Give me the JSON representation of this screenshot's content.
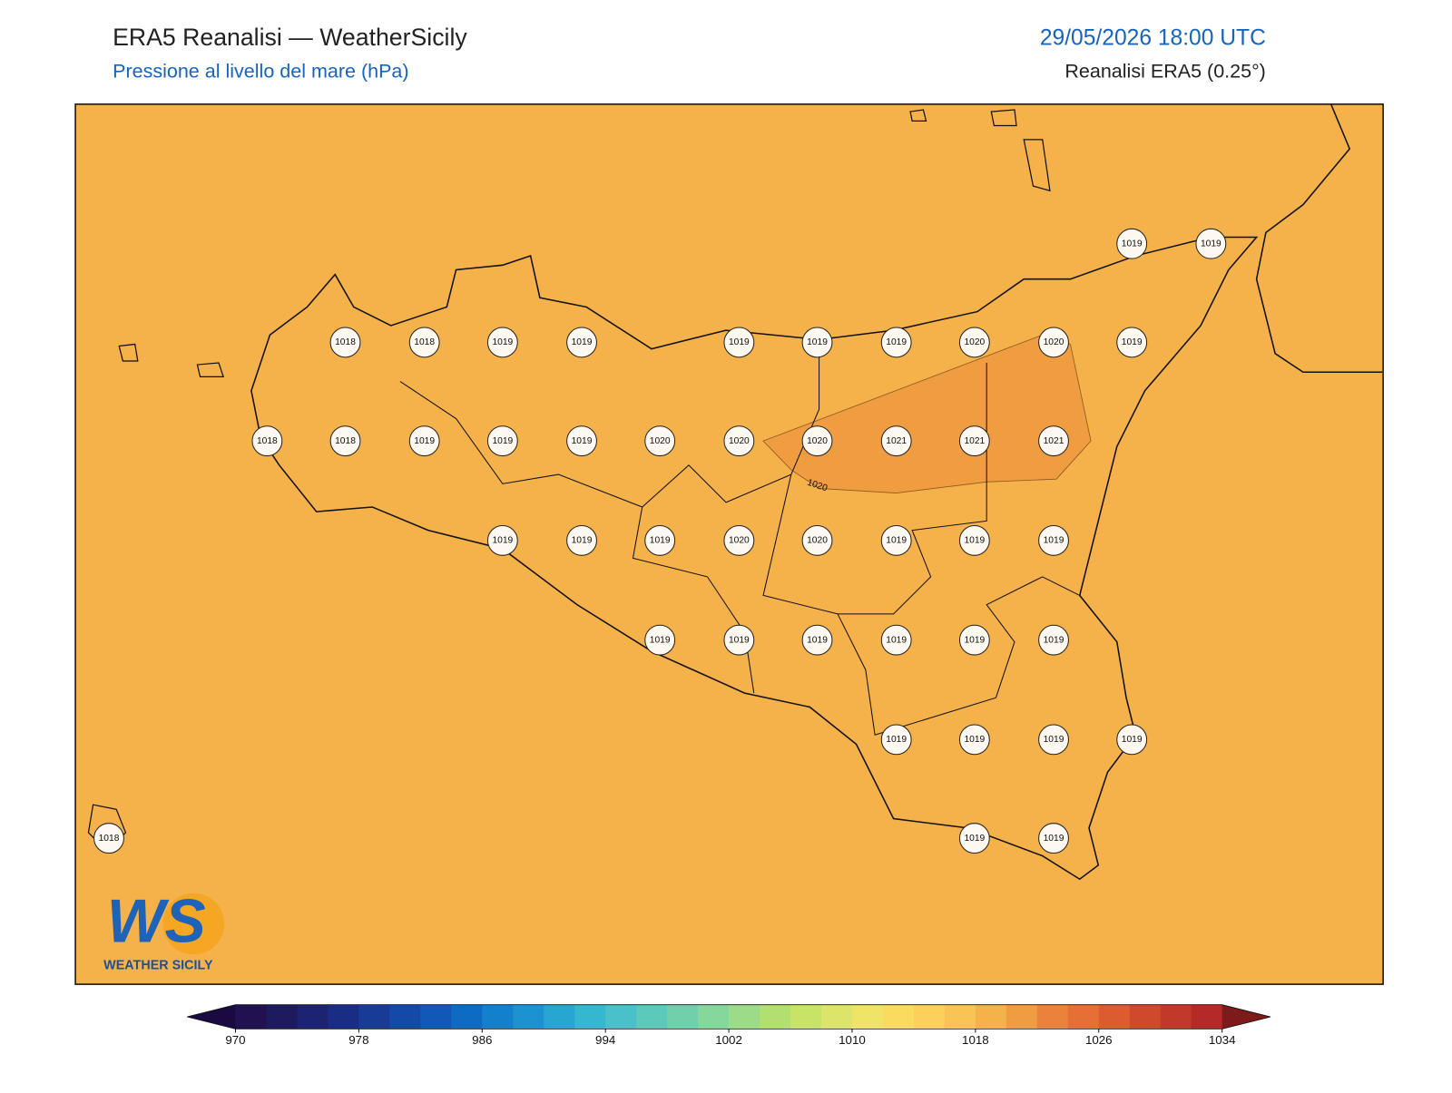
{
  "header": {
    "title": "ERA5 Reanalisi — WeatherSicily",
    "subtitle": "Pressione al livello del mare (hPa)",
    "valid_time": "29/05/2026 18:00 UTC",
    "source": "Reanalisi ERA5 (0.25°)"
  },
  "map": {
    "contour_label": "1020",
    "stations": [
      1019,
      1019,
      1018,
      1018,
      1019,
      1019,
      1019,
      1019,
      1019,
      1020,
      1020,
      1019,
      1018,
      1018,
      1019,
      1019,
      1019,
      1020,
      1020,
      1020,
      1021,
      1021,
      1021,
      1019,
      1019,
      1019,
      1020,
      1020,
      1019,
      1019,
      1019,
      1019,
      1019,
      1019,
      1019,
      1019,
      1019,
      1019,
      1019,
      1019,
      1019,
      1018,
      1019,
      1019
    ]
  },
  "logo": {
    "mark": "WS",
    "name": "WEATHER SICILY"
  },
  "colorbar": {
    "range": [
      970,
      1034
    ],
    "ticks": [
      970,
      978,
      986,
      994,
      1002,
      1010,
      1018,
      1026,
      1034
    ]
  }
}
